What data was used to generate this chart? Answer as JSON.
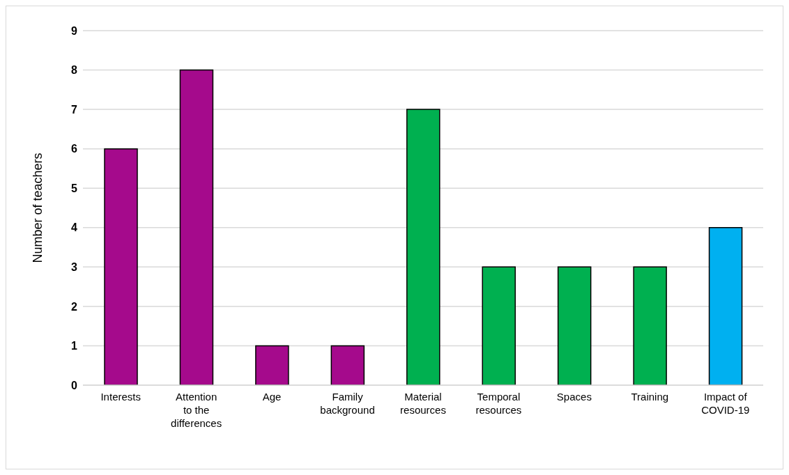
{
  "chart_data": {
    "type": "bar",
    "ylabel": "Number of teachers",
    "categories": [
      "Interests",
      "Attention to the differences",
      "Age",
      "Family background",
      "Material resources",
      "Temporal resources",
      "Spaces",
      "Training",
      "Impact of COVID-19"
    ],
    "values": [
      6,
      8,
      1,
      1,
      7,
      3,
      3,
      3,
      4
    ],
    "colors": [
      "#a50a8c",
      "#a50a8c",
      "#a50a8c",
      "#a50a8c",
      "#00b050",
      "#00b050",
      "#00b050",
      "#00b050",
      "#00b0f0"
    ],
    "ylim": [
      0,
      9
    ],
    "yticks": [
      0,
      1,
      2,
      3,
      4,
      5,
      6,
      7,
      8,
      9
    ],
    "grid": "y",
    "legend": false
  }
}
